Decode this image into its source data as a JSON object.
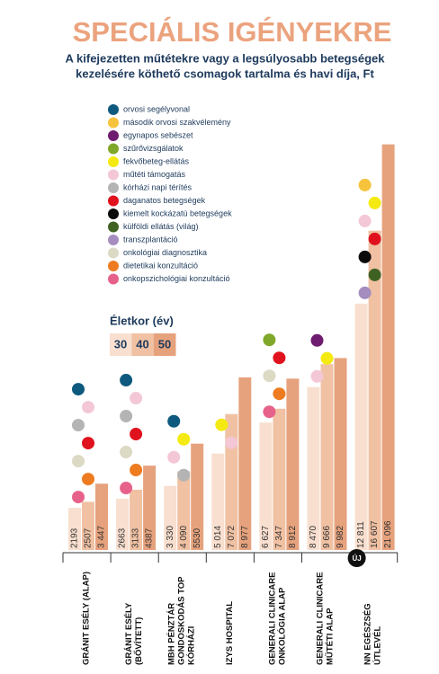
{
  "chart_data": {
    "type": "bar",
    "title": "SPECIÁLIS IGÉNYEKRE",
    "subtitle": [
      "A kifejezetten műtétekre vagy a legsúlyosabb betegségek",
      "kezelésére köthető csomagok tartalma és havi díja, Ft"
    ],
    "legend_services": [
      {
        "name": "orvosi segélyvonal",
        "color": "#0e5a7e"
      },
      {
        "name": "második orvosi szakvélemény",
        "color": "#f7c33c"
      },
      {
        "name": "egynapos sebészet",
        "color": "#6e1c6f"
      },
      {
        "name": "szűrővizsgálatok",
        "color": "#7fa82a"
      },
      {
        "name": "fekvőbeteg-ellátás",
        "color": "#f4ea12"
      },
      {
        "name": "műtéti támogatás",
        "color": "#f3c7d6"
      },
      {
        "name": "kórházi napi térítés",
        "color": "#b4b4b4"
      },
      {
        "name": "daganatos betegségek",
        "color": "#e0121d"
      },
      {
        "name": "kiemelt kockázatú betegségek",
        "color": "#0b0b0b"
      },
      {
        "name": "külföldi ellátás (világ)",
        "color": "#3f6222"
      },
      {
        "name": "transzplantáció",
        "color": "#a58dc0"
      },
      {
        "name": "onkológiai diagnosztika",
        "color": "#dcd9c4"
      },
      {
        "name": "dietetikai konzultáció",
        "color": "#ee7b1f"
      },
      {
        "name": "onkopszichológiai konzultáció",
        "color": "#e7628a"
      }
    ],
    "age_legend_title": "Életkor (év)",
    "categories": [
      [
        "GRÁNIT ESÉLY (ALAP)"
      ],
      [
        "GRÁNIT ESÉLY",
        "(BŐVÍTETT)"
      ],
      [
        "MBH PÉNZTÁR",
        "GONDOSKODÁS TOP",
        "KÓRHÁZI"
      ],
      [
        "IZYS HOSPITAL"
      ],
      [
        "GENERALI CLINICARE",
        "ONKOLÓGIA ALAP"
      ],
      [
        "GENERALI CLINICARE",
        "MŰTÉTI ALAP"
      ],
      [
        "NN EGÉSZSÉG",
        "ÚTLEVÉL"
      ]
    ],
    "badge": {
      "category": 6,
      "text": "ÚJ"
    },
    "series": [
      {
        "name": "30",
        "color": "#f8dfcf",
        "values": [
          2193,
          2663,
          3330,
          5014,
          6627,
          8470,
          12811
        ],
        "value_labels": [
          "2193",
          "2663",
          "3 330",
          "5 014",
          "6 627",
          "8 470",
          "12 811"
        ]
      },
      {
        "name": "40",
        "color": "#f0c1a3",
        "values": [
          2507,
          3133,
          4090,
          7072,
          7347,
          9666,
          16607
        ],
        "value_labels": [
          "2507",
          "3133",
          "4 090",
          "7 072",
          "7 347",
          "9 666",
          "16 607"
        ]
      },
      {
        "name": "50",
        "color": "#e6a27d",
        "values": [
          3447,
          4387,
          5530,
          8977,
          8912,
          9982,
          21096
        ],
        "value_labels": [
          "3 447",
          "4387",
          "5530",
          "8 977",
          "8 912",
          "9 982",
          "21 096"
        ]
      }
    ],
    "services": [
      [
        0,
        5,
        6,
        7,
        11,
        12,
        13
      ],
      [
        0,
        5,
        6,
        7,
        11,
        12,
        13
      ],
      [
        0,
        4,
        5,
        6
      ],
      [
        4,
        5
      ],
      [
        3,
        7,
        11,
        12,
        13
      ],
      [
        2,
        4,
        5
      ],
      [
        1,
        4,
        5,
        7,
        8,
        9,
        10
      ]
    ],
    "ylim": [
      0,
      21500
    ]
  }
}
